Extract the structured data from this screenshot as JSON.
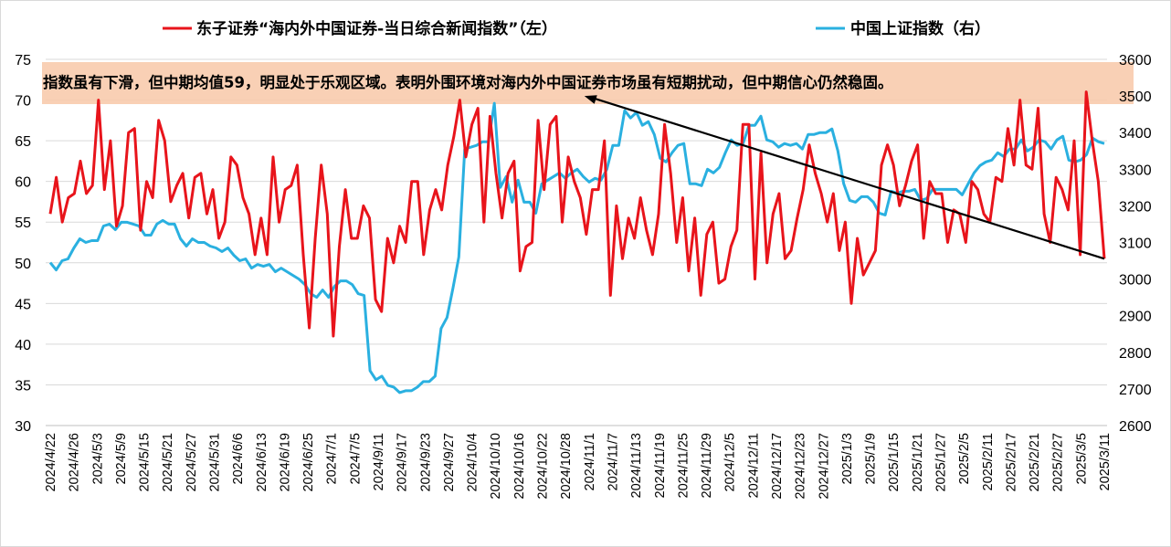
{
  "chart_data": {
    "type": "line",
    "legend": {
      "placement": "top",
      "left_series_label": "东子证券“海内外中国证券-当日综合新闻指数”（左）",
      "right_series_label": "中国上证指数（右）"
    },
    "annotation": "指数虽有下滑，但中期均值59，明显处于乐观区域。表明外围环境对海内外中国证券市场虽有短期扰动，但中期信心仍然稳固。",
    "y_left": {
      "ylim": [
        30,
        75
      ],
      "ticks": [
        "30",
        "35",
        "40",
        "45",
        "50",
        "55",
        "60",
        "65",
        "70",
        "75"
      ]
    },
    "y_right": {
      "ylim": [
        2600,
        3600
      ],
      "ticks": [
        "2600",
        "2700",
        "2800",
        "2900",
        "3000",
        "3100",
        "3200",
        "3300",
        "3400",
        "3500",
        "3600"
      ]
    },
    "x_ticks": [
      "2024/4/22",
      "2024/4/26",
      "2024/5/3",
      "2024/5/9",
      "2024/5/15",
      "2024/5/21",
      "2024/5/27",
      "2024/5/31",
      "2024/6/6",
      "2024/6/13",
      "2024/6/19",
      "2024/6/25",
      "2024/7/1",
      "2024/7/5",
      "2024/9/11",
      "2024/9/17",
      "2024/9/23",
      "2024/9/27",
      "2024/10/4",
      "2024/10/10",
      "2024/10/16",
      "2024/10/22",
      "2024/10/28",
      "2024/11/1",
      "2024/11/7",
      "2024/11/13",
      "2024/11/19",
      "2024/11/25",
      "2024/11/29",
      "2024/12/5",
      "2024/12/11",
      "2024/12/17",
      "2024/12/23",
      "2024/12/27",
      "2025/1/3",
      "2025/1/9",
      "2025/1/15",
      "2025/1/21",
      "2025/1/27",
      "2025/2/5",
      "2025/2/11",
      "2025/2/17",
      "2025/2/21",
      "2025/2/27",
      "2025/3/5",
      "2025/3/11"
    ],
    "series": [
      {
        "name": "东子证券“海内外中国证券-当日综合新闻指数”（左）",
        "axis": "left",
        "color": "#E8141B",
        "values": [
          56,
          60.5,
          55,
          58,
          58.5,
          62.5,
          58.5,
          59.5,
          70,
          59,
          65,
          54.5,
          57,
          66,
          66.5,
          54,
          60,
          58,
          67.5,
          65,
          57.5,
          59.5,
          61,
          55.5,
          60.5,
          61,
          56,
          59,
          53,
          55,
          63,
          62,
          58,
          56,
          51,
          55.5,
          51,
          63,
          55,
          59,
          59.5,
          62,
          51,
          42,
          53,
          62,
          56,
          41,
          52,
          59,
          53,
          53,
          57,
          55.5,
          45.5,
          44,
          53,
          50,
          54.5,
          52.5,
          60,
          60,
          51,
          56.5,
          59,
          56.5,
          62,
          65.5,
          70,
          63,
          67,
          69,
          55,
          68,
          61,
          55.5,
          61,
          62.5,
          49,
          52,
          52.5,
          67.5,
          59,
          67,
          68,
          55,
          63,
          60,
          58,
          53.5,
          59,
          59,
          65,
          46,
          57,
          50.5,
          55.5,
          53,
          58,
          54,
          51,
          56,
          67,
          61,
          52.5,
          58,
          49,
          55.5,
          46,
          53.5,
          55,
          47.5,
          48,
          52,
          54,
          67,
          67,
          48,
          63.5,
          50,
          56,
          58.5,
          50.5,
          51.5,
          55.5,
          59,
          64.5,
          61,
          58.5,
          55,
          58.5,
          51.5,
          55,
          45,
          53,
          48.5,
          50,
          51.5,
          62,
          64.5,
          62,
          57,
          59.5,
          62.5,
          64.5,
          53,
          60,
          58.5,
          58.5,
          52.5,
          56.5,
          56,
          52.5,
          60,
          59,
          56,
          55,
          60.5,
          60,
          66.5,
          62,
          70,
          62,
          61.5,
          69,
          56,
          52.5,
          60.5,
          59,
          56.5,
          65,
          51,
          71,
          65,
          60,
          50.5
        ]
      },
      {
        "name": "中国上证指数（右）",
        "axis": "right",
        "color": "#2AB0E0",
        "values": [
          3045,
          3025,
          3050,
          3055,
          3085,
          3110,
          3100,
          3105,
          3105,
          3145,
          3150,
          3135,
          3155,
          3155,
          3150,
          3145,
          3120,
          3120,
          3150,
          3160,
          3150,
          3150,
          3110,
          3090,
          3110,
          3100,
          3100,
          3090,
          3085,
          3075,
          3085,
          3065,
          3050,
          3055,
          3030,
          3040,
          3035,
          3040,
          3020,
          3030,
          3020,
          3010,
          3000,
          2985,
          2960,
          2950,
          2970,
          2950,
          2980,
          2995,
          2995,
          2985,
          2960,
          2955,
          2750,
          2725,
          2735,
          2710,
          2705,
          2690,
          2695,
          2695,
          2705,
          2720,
          2720,
          2735,
          2865,
          2895,
          2975,
          3060,
          3355,
          3360,
          3365,
          3375,
          3375,
          3480,
          3250,
          3280,
          3210,
          3270,
          3210,
          3210,
          3180,
          3260,
          3270,
          3280,
          3290,
          3275,
          3290,
          3300,
          3280,
          3265,
          3275,
          3270,
          3300,
          3365,
          3365,
          3460,
          3440,
          3455,
          3420,
          3430,
          3395,
          3330,
          3320,
          3345,
          3365,
          3370,
          3260,
          3260,
          3255,
          3300,
          3290,
          3305,
          3345,
          3380,
          3365,
          3370,
          3420,
          3420,
          3445,
          3380,
          3375,
          3360,
          3370,
          3365,
          3370,
          3355,
          3395,
          3395,
          3400,
          3400,
          3410,
          3350,
          3260,
          3215,
          3210,
          3225,
          3225,
          3210,
          3180,
          3175,
          3240,
          3235,
          3240,
          3240,
          3245,
          3215,
          3220,
          3245,
          3245,
          3245,
          3245,
          3245,
          3230,
          3260,
          3290,
          3310,
          3320,
          3325,
          3345,
          3335,
          3355,
          3355,
          3380,
          3350,
          3360,
          3380,
          3375,
          3355,
          3380,
          3390,
          3325,
          3320,
          3325,
          3340,
          3385,
          3375,
          3370
        ]
      }
    ],
    "trend_arrow": {
      "from": {
        "series_index": 0,
        "value": 50.5,
        "point": "last"
      },
      "to": {
        "y_left_value": 70.5,
        "near_x_tick": "2024/11/1"
      }
    }
  }
}
